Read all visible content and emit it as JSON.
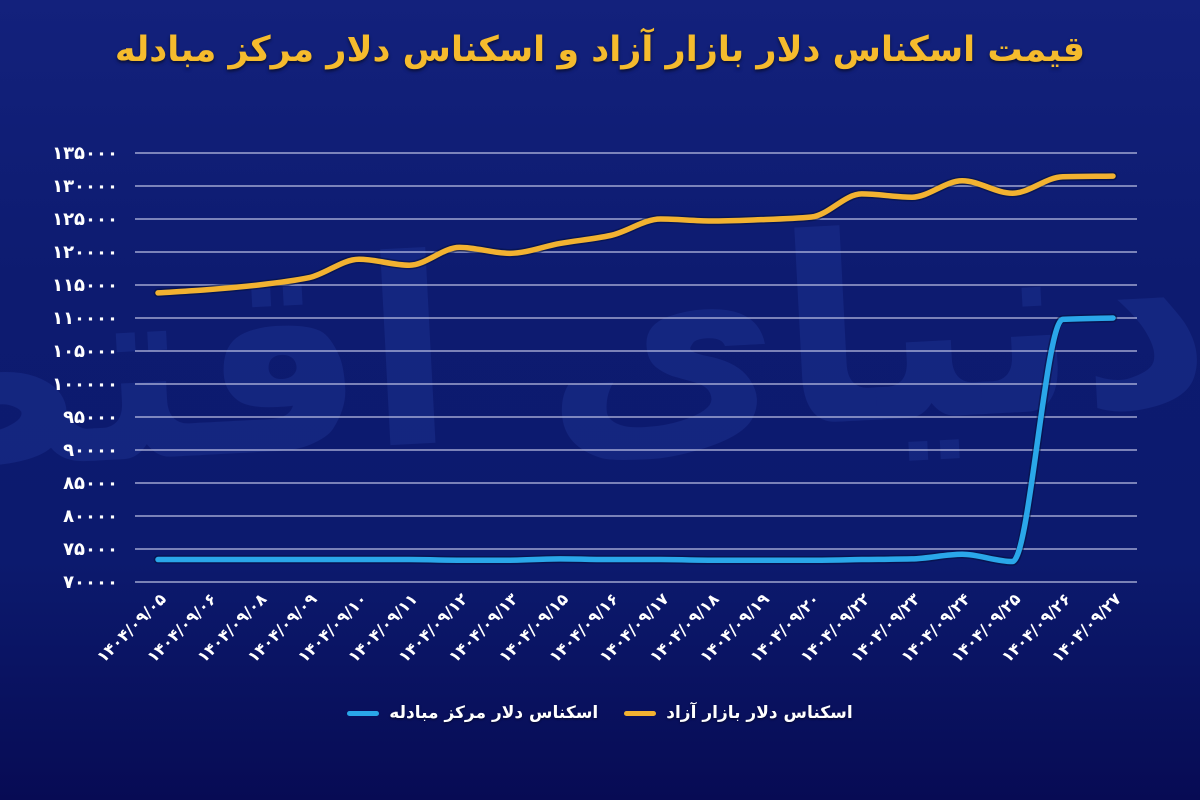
{
  "title": "قیمت اسکناس دلار بازار آزاد و اسکناس دلار مرکز مبادله",
  "watermark": "دنیای اقتصاد",
  "colors": {
    "background": "#0c1a6e",
    "title": "#f5bb2d",
    "grid": "#ccd0ee",
    "axis_text": "#ffffff",
    "free_market_line": "#f2b231",
    "exchange_center_line": "#2aa7e9",
    "watermark_text": "#4468e0"
  },
  "chart_data": {
    "type": "line",
    "categories": [
      "۱۴۰۴/۰۹/۰۵",
      "۱۴۰۴/۰۹/۰۶",
      "۱۴۰۴/۰۹/۰۸",
      "۱۴۰۴/۰۹/۰۹",
      "۱۴۰۴/۰۹/۱۰",
      "۱۴۰۴/۰۹/۱۱",
      "۱۴۰۴/۰۹/۱۲",
      "۱۴۰۴/۰۹/۱۳",
      "۱۴۰۴/۰۹/۱۵",
      "۱۴۰۴/۰۹/۱۶",
      "۱۴۰۴/۰۹/۱۷",
      "۱۴۰۴/۰۹/۱۸",
      "۱۴۰۴/۰۹/۱۹",
      "۱۴۰۴/۰۹/۲۰",
      "۱۴۰۴/۰۹/۲۲",
      "۱۴۰۴/۰۹/۲۳",
      "۱۴۰۴/۰۹/۲۴",
      "۱۴۰۴/۰۹/۲۵",
      "۱۴۰۴/۰۹/۲۶",
      "۱۴۰۴/۰۹/۲۷"
    ],
    "series": [
      {
        "id": "free-market",
        "name": "اسکناس دلار بازار آزاد",
        "color": "#f2b231",
        "values": [
          113800,
          114300,
          115000,
          116100,
          118900,
          118000,
          120700,
          119800,
          121300,
          122500,
          125000,
          124700,
          124900,
          125300,
          128800,
          128300,
          130800,
          128900,
          131400,
          131500
        ]
      },
      {
        "id": "exchange-center",
        "name": "اسکناس دلار مرکز مبادله",
        "color": "#2aa7e9",
        "values": [
          73400,
          73400,
          73400,
          73400,
          73400,
          73400,
          73300,
          73300,
          73500,
          73400,
          73400,
          73300,
          73300,
          73300,
          73400,
          73500,
          74200,
          73100,
          109800,
          110000
        ]
      }
    ],
    "ylim": [
      70000,
      135000
    ],
    "ytick_step": 5000,
    "yticks": [
      70000,
      75000,
      80000,
      85000,
      90000,
      95000,
      100000,
      105000,
      110000,
      115000,
      120000,
      125000,
      130000,
      135000
    ],
    "ytick_labels": [
      "۷۰۰۰۰",
      "۷۵۰۰۰",
      "۸۰۰۰۰",
      "۸۵۰۰۰",
      "۹۰۰۰۰",
      "۹۵۰۰۰",
      "۱۰۰۰۰۰",
      "۱۰۵۰۰۰",
      "۱۱۰۰۰۰",
      "۱۱۵۰۰۰",
      "۱۲۰۰۰۰",
      "۱۲۵۰۰۰",
      "۱۳۰۰۰۰",
      "۱۳۵۰۰۰"
    ],
    "grid": true,
    "x_axis_label_rotation": 45,
    "legend_position": "bottom"
  }
}
